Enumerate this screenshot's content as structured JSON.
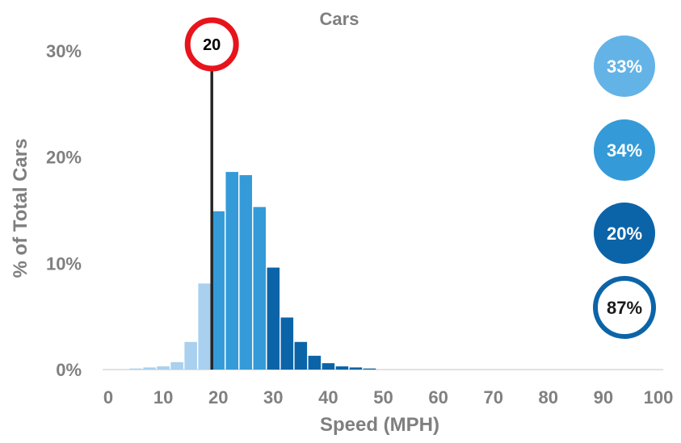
{
  "chart_data": {
    "type": "bar",
    "title": "Cars",
    "xlabel": "Speed (MPH)",
    "ylabel": "% of Total Cars",
    "xlim": [
      0,
      100
    ],
    "ylim": [
      0,
      30
    ],
    "x_ticks": [
      "0",
      "10",
      "20",
      "30",
      "40",
      "50",
      "60",
      "70",
      "80",
      "90",
      "100"
    ],
    "y_ticks": [
      "0%",
      "10%",
      "20%",
      "30%"
    ],
    "bin_width": 2.5,
    "bins": [
      {
        "x": 5.0,
        "value": 0.1,
        "color": "#a9d0ee"
      },
      {
        "x": 7.5,
        "value": 0.2,
        "color": "#a9d0ee"
      },
      {
        "x": 10.0,
        "value": 0.3,
        "color": "#a9d0ee"
      },
      {
        "x": 12.5,
        "value": 0.7,
        "color": "#a9d0ee"
      },
      {
        "x": 15.0,
        "value": 2.6,
        "color": "#a9d0ee"
      },
      {
        "x": 17.5,
        "value": 8.1,
        "color": "#a9d0ee"
      },
      {
        "x": 20.0,
        "value": 14.9,
        "color": "#349bd8"
      },
      {
        "x": 22.5,
        "value": 18.6,
        "color": "#349bd8"
      },
      {
        "x": 25.0,
        "value": 18.3,
        "color": "#349bd8"
      },
      {
        "x": 27.5,
        "value": 15.3,
        "color": "#349bd8"
      },
      {
        "x": 30.0,
        "value": 9.6,
        "color": "#0c64a8"
      },
      {
        "x": 32.5,
        "value": 4.9,
        "color": "#0c64a8"
      },
      {
        "x": 35.0,
        "value": 2.6,
        "color": "#0c64a8"
      },
      {
        "x": 37.5,
        "value": 1.3,
        "color": "#0c64a8"
      },
      {
        "x": 40.0,
        "value": 0.6,
        "color": "#0c64a8"
      },
      {
        "x": 42.5,
        "value": 0.3,
        "color": "#0c64a8"
      },
      {
        "x": 45.0,
        "value": 0.2,
        "color": "#0c64a8"
      },
      {
        "x": 47.5,
        "value": 0.1,
        "color": "#0c64a8"
      }
    ],
    "speed_limit": {
      "x": 20,
      "label": "20",
      "ring_color": "#e8141c"
    },
    "summary_bubbles": [
      {
        "label": "33%",
        "fill": "#64b3e6",
        "text_color": "#ffffff",
        "outline": false
      },
      {
        "label": "34%",
        "fill": "#349bd8",
        "text_color": "#ffffff",
        "outline": false
      },
      {
        "label": "20%",
        "fill": "#0c64a8",
        "text_color": "#ffffff",
        "outline": false
      },
      {
        "label": "87%",
        "fill": "#ffffff",
        "text_color": "#1a1a1a",
        "outline": true,
        "outline_color": "#0c64a8"
      }
    ],
    "grid": false,
    "legend": "none"
  }
}
